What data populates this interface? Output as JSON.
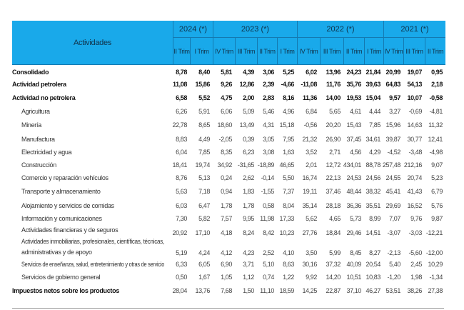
{
  "header": {
    "title": "Actividades",
    "groups": [
      {
        "label": "2024 (*)",
        "subs": [
          "II Trim",
          "I Trim"
        ]
      },
      {
        "label": "2023 (*)",
        "subs": [
          "IV Trim",
          "III Trim",
          "II Trim",
          "I Trim"
        ]
      },
      {
        "label": "2022 (*)",
        "subs": [
          "IV Trim",
          "III Trim",
          "II Trim",
          "I Trim"
        ]
      },
      {
        "label": "2021 (*)",
        "subs": [
          "IV Trim",
          "III Trim",
          "II Trim"
        ]
      }
    ],
    "color": "#19a9ea"
  },
  "rows": [
    {
      "label": "Consolidado",
      "bold": true,
      "values": [
        "8,78",
        "8,40",
        "5,81",
        "4,39",
        "3,06",
        "5,25",
        "6,02",
        "13,96",
        "24,23",
        "21,84",
        "20,99",
        "19,07",
        "0,95"
      ]
    },
    {
      "label": "Actividad petrolera",
      "bold": true,
      "values": [
        "11,08",
        "15,86",
        "9,26",
        "12,86",
        "2,39",
        "-4,66",
        "-11,08",
        "11,76",
        "35,76",
        "39,63",
        "64,83",
        "54,13",
        "2,18"
      ]
    },
    {
      "label": "Actividad no petrolera",
      "bold": true,
      "values": [
        "6,58",
        "5,52",
        "4,75",
        "2,00",
        "2,83",
        "8,16",
        "11,36",
        "14,00",
        "19,53",
        "15,04",
        "9,57",
        "10,07",
        "-0,58"
      ]
    },
    {
      "label": "Agricultura",
      "values": [
        "6,26",
        "5,91",
        "6,06",
        "5,09",
        "5,46",
        "4,96",
        "6,84",
        "5,65",
        "4,61",
        "4,44",
        "3,27",
        "-0,69",
        "-4,81"
      ]
    },
    {
      "label": "Minería",
      "values": [
        "22,78",
        "8,65",
        "18,60",
        "13,49",
        "4,31",
        "15,18",
        "-0,56",
        "20,20",
        "15,43",
        "7,85",
        "15,96",
        "14,63",
        "11,32"
      ]
    },
    {
      "label": "Manufactura",
      "values": [
        "8,83",
        "4,49",
        "-2,05",
        "0,39",
        "3,05",
        "7,95",
        "21,32",
        "26,90",
        "37,45",
        "34,61",
        "39,87",
        "30,77",
        "12,41"
      ]
    },
    {
      "label": "Electricidad y agua",
      "values": [
        "6,04",
        "7,85",
        "8,35",
        "6,23",
        "3,08",
        "1,63",
        "3,52",
        "2,71",
        "4,56",
        "4,29",
        "-4,52",
        "-3,48",
        "-4,98"
      ]
    },
    {
      "label": "Construcción",
      "values": [
        "18,41",
        "19,74",
        "34,92",
        "-31,65",
        "-18,89",
        "46,65",
        "2,01",
        "12,72",
        "434,01",
        "88,78",
        "257,48",
        "212,16",
        "9,07"
      ]
    },
    {
      "label": "Comercio y reparación vehículos",
      "values": [
        "8,76",
        "5,13",
        "0,24",
        "2,62",
        "-0,14",
        "5,50",
        "16,74",
        "22,13",
        "24,53",
        "24,56",
        "24,55",
        "20,74",
        "5,23"
      ]
    },
    {
      "label": "Transporte y almacenamiento",
      "values": [
        "5,63",
        "7,18",
        "0,94",
        "1,83",
        "-1,55",
        "7,37",
        "19,11",
        "37,46",
        "48,44",
        "38,32",
        "45,41",
        "41,43",
        "6,79"
      ]
    },
    {
      "label": "Alojamiento y servicios de comidas",
      "values": [
        "6,03",
        "6,47",
        "1,78",
        "1,78",
        "0,58",
        "8,04",
        "35,14",
        "28,18",
        "36,36",
        "35,51",
        "29,69",
        "16,52",
        "5,76"
      ]
    },
    {
      "label": "Información y comunicaciones",
      "values": [
        "7,30",
        "5,82",
        "7,57",
        "9,95",
        "11,98",
        "17,33",
        "5,62",
        "4,65",
        "5,73",
        "8,99",
        "7,07",
        "9,76",
        "9,87"
      ]
    },
    {
      "label": "Actividades financieras y de seguros",
      "values": [
        "20,92",
        "17,10",
        "4,18",
        "8,24",
        "8,42",
        "10,23",
        "27,76",
        "18,84",
        "29,46",
        "14,51",
        "-3,07",
        "-3,03",
        "-12,21"
      ]
    },
    {
      "label": "Actividades inmobiliarias, profesionales, científicas, técnicas,",
      "label2": "administrativas y de apoyo",
      "values": [
        "5,19",
        "4,24",
        "4,12",
        "4,23",
        "2,52",
        "4,10",
        "3,50",
        "5,99",
        "8,45",
        "8,27",
        "-2,13",
        "-5,60",
        "-12,00"
      ]
    },
    {
      "label": "Servicios de enseñanza, salud, entretenimiento y otras de servicio",
      "values": [
        "6,33",
        "6,05",
        "6,90",
        "3,71",
        "5,10",
        "8,63",
        "30,16",
        "37,32",
        "40,09",
        "20,54",
        "5,40",
        "2,45",
        "10,29"
      ]
    },
    {
      "label": "Servicios de gobierno general",
      "values": [
        "0,50",
        "1,67",
        "1,05",
        "1,12",
        "0,74",
        "1,22",
        "9,92",
        "14,20",
        "10,51",
        "10,83",
        "-1,20",
        "1,98",
        "-1,34"
      ]
    },
    {
      "label": "Impuestos netos sobre los productos",
      "bold": true,
      "top": true,
      "values": [
        "28,04",
        "13,76",
        "7,68",
        "1,50",
        "11,10",
        "18,59",
        "14,25",
        "22,87",
        "37,10",
        "46,27",
        "53,51",
        "38,26",
        "27,38"
      ]
    }
  ]
}
